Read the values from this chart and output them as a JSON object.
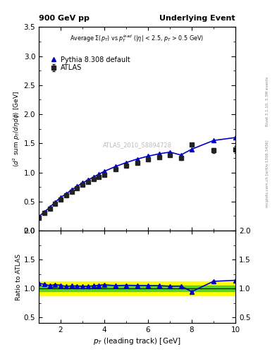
{
  "title_left": "900 GeV pp",
  "title_right": "Underlying Event",
  "annotation": "Average $\\Sigma(p_T)$ vs $p_T^{lead}$ ($|\\eta|$ < 2.5, $p_T$ > 0.5 GeV)",
  "watermark": "ATLAS_2010_S8894728",
  "right_label1": "Rivet 3.1.10, 3.3M events",
  "right_label2": "mcplots.cern.ch [arXiv:1306.3436]",
  "ylabel_main": "$\\langle d^2$ sum $p_T/d\\eta d\\phi\\rangle$ [GeV]",
  "xlabel": "$p_T$ (leading track) [GeV]",
  "ylabel_ratio": "Ratio to ATLAS",
  "atlas_x": [
    1.0,
    1.25,
    1.5,
    1.75,
    2.0,
    2.25,
    2.5,
    2.75,
    3.0,
    3.25,
    3.5,
    3.75,
    4.0,
    4.5,
    5.0,
    5.5,
    6.0,
    6.5,
    7.0,
    7.5,
    8.0,
    9.0,
    10.0
  ],
  "atlas_y": [
    0.22,
    0.3,
    0.38,
    0.46,
    0.54,
    0.61,
    0.67,
    0.73,
    0.79,
    0.84,
    0.88,
    0.92,
    0.96,
    1.05,
    1.11,
    1.17,
    1.22,
    1.26,
    1.3,
    1.25,
    1.48,
    1.38,
    1.4
  ],
  "atlas_yerr": [
    0.01,
    0.01,
    0.01,
    0.01,
    0.01,
    0.01,
    0.01,
    0.01,
    0.01,
    0.01,
    0.01,
    0.01,
    0.01,
    0.01,
    0.01,
    0.01,
    0.01,
    0.02,
    0.02,
    0.04,
    0.03,
    0.04,
    0.06
  ],
  "pythia_x": [
    1.0,
    1.25,
    1.5,
    1.75,
    2.0,
    2.25,
    2.5,
    2.75,
    3.0,
    3.25,
    3.5,
    3.75,
    4.0,
    4.5,
    5.0,
    5.5,
    6.0,
    6.5,
    7.0,
    7.5,
    8.0,
    9.0,
    10.0
  ],
  "pythia_y": [
    0.24,
    0.32,
    0.4,
    0.49,
    0.57,
    0.63,
    0.7,
    0.76,
    0.82,
    0.87,
    0.92,
    0.97,
    1.02,
    1.1,
    1.17,
    1.23,
    1.28,
    1.32,
    1.35,
    1.3,
    1.4,
    1.55,
    1.6
  ],
  "ratio_y": [
    1.09,
    1.07,
    1.05,
    1.065,
    1.055,
    1.033,
    1.045,
    1.041,
    1.038,
    1.036,
    1.045,
    1.054,
    1.063,
    1.048,
    1.054,
    1.051,
    1.049,
    1.048,
    1.038,
    1.04,
    0.945,
    1.123,
    1.14
  ],
  "band_yellow_low": 0.88,
  "band_yellow_high": 1.12,
  "band_green_low": 0.95,
  "band_green_high": 1.05,
  "main_xlim": [
    1.0,
    10.0
  ],
  "main_ylim": [
    0.0,
    3.5
  ],
  "ratio_ylim": [
    0.4,
    2.0
  ],
  "atlas_color": "#222222",
  "pythia_color": "#0000cc",
  "band_yellow_color": "#ffff00",
  "band_green_color": "#33cc33",
  "legend_atlas": "ATLAS",
  "legend_pythia": "Pythia 8.308 default"
}
